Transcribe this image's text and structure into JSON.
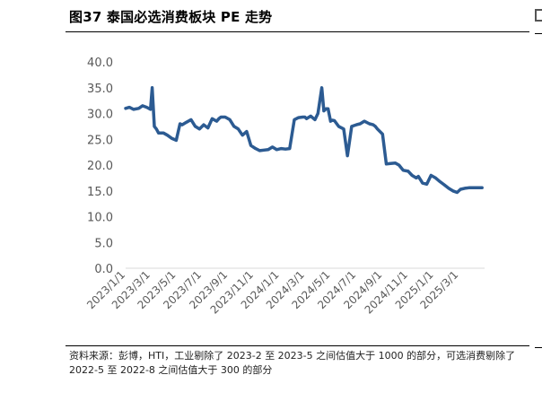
{
  "figure": {
    "title": "图37 泰国必选消费板块 PE 走势",
    "note": "资料来源：彭博，HTI，工业剔除了 2023-2 至 2023-5 之间估值大于 1000 的部分，可选消费剔除了 2022-5 至 2022-8 之间估值大于 300 的部分"
  },
  "chart_data": {
    "type": "line",
    "title": "",
    "xlabel": "",
    "ylabel": "",
    "ylim": [
      0,
      40
    ],
    "yticks": [
      "0.0",
      "5.0",
      "10.0",
      "15.0",
      "20.0",
      "25.0",
      "30.0",
      "35.0",
      "40.0"
    ],
    "xticks": [
      "2023/1/1",
      "2023/3/1",
      "2023/5/1",
      "2023/7/1",
      "2023/9/1",
      "2023/11/1",
      "2024/1/1",
      "2024/3/1",
      "2024/5/1",
      "2024/7/1",
      "2024/9/1",
      "2024/11/1",
      "2025/1/1",
      "2025/3/1"
    ],
    "grid": false,
    "legend": "none",
    "color": "#2c5b92",
    "series": [
      {
        "name": "",
        "x": [
          "2023/1/1",
          "2023/1/10",
          "2023/1/20",
          "2023/2/1",
          "2023/2/10",
          "2023/2/20",
          "2023/3/1",
          "2023/3/5",
          "2023/3/10",
          "2023/3/15",
          "2023/3/20",
          "2023/4/1",
          "2023/4/10",
          "2023/4/20",
          "2023/5/1",
          "2023/5/10",
          "2023/5/15",
          "2023/5/25",
          "2023/6/5",
          "2023/6/15",
          "2023/6/25",
          "2023/7/5",
          "2023/7/15",
          "2023/7/25",
          "2023/8/5",
          "2023/8/10",
          "2023/8/15",
          "2023/8/25",
          "2023/9/5",
          "2023/9/15",
          "2023/9/25",
          "2023/10/5",
          "2023/10/15",
          "2023/10/25",
          "2023/11/5",
          "2023/11/15",
          "2023/11/25",
          "2023/12/5",
          "2023/12/15",
          "2023/12/25",
          "2024/1/5",
          "2024/1/15",
          "2024/1/25",
          "2024/2/5",
          "2024/2/15",
          "2024/2/25",
          "2024/3/1",
          "2024/3/5",
          "2024/3/15",
          "2024/3/25",
          "2024/4/1",
          "2024/4/10",
          "2024/4/15",
          "2024/4/20",
          "2024/4/25",
          "2024/5/1",
          "2024/5/5",
          "2024/5/10",
          "2024/5/20",
          "2024/6/1",
          "2024/6/10",
          "2024/6/20",
          "2024/7/1",
          "2024/7/10",
          "2024/7/20",
          "2024/8/1",
          "2024/8/10",
          "2024/8/15",
          "2024/8/20",
          "2024/9/1",
          "2024/9/10",
          "2024/9/20",
          "2024/10/1",
          "2024/10/10",
          "2024/10/20",
          "2024/11/1",
          "2024/11/10",
          "2024/11/20",
          "2024/11/25",
          "2024/12/5",
          "2024/12/15",
          "2024/12/25",
          "2025/1/5",
          "2025/1/15",
          "2025/1/25",
          "2025/2/5",
          "2025/2/15",
          "2025/2/25",
          "2025/3/5",
          "2025/3/15",
          "2025/3/25",
          "2025/4/5",
          "2025/4/15",
          "2025/4/25"
        ],
        "values": [
          31.0,
          31.2,
          30.8,
          31.0,
          31.5,
          31.2,
          30.8,
          35.0,
          27.5,
          27.0,
          26.2,
          26.2,
          25.8,
          25.2,
          24.8,
          28.0,
          27.8,
          28.3,
          28.8,
          27.5,
          27.0,
          27.8,
          27.2,
          29.0,
          28.5,
          29.0,
          29.3,
          29.3,
          28.8,
          27.5,
          27.0,
          25.8,
          26.5,
          23.8,
          23.2,
          22.8,
          22.9,
          23.0,
          23.5,
          23.0,
          23.2,
          23.1,
          23.2,
          28.8,
          29.2,
          29.3,
          29.3,
          29.0,
          29.5,
          28.8,
          30.0,
          35.0,
          30.5,
          30.9,
          30.9,
          28.5,
          28.7,
          28.6,
          27.5,
          27.0,
          21.8,
          27.5,
          27.8,
          28.0,
          28.5,
          28.0,
          27.8,
          27.5,
          27.0,
          26.0,
          20.2,
          20.3,
          20.4,
          20.0,
          19.0,
          18.8,
          18.0,
          17.5,
          17.8,
          16.5,
          16.3,
          18.0,
          17.5,
          16.8,
          16.2,
          15.5,
          15.0,
          14.7,
          15.3,
          15.5,
          15.6,
          15.6,
          15.6,
          15.6
        ]
      }
    ]
  }
}
